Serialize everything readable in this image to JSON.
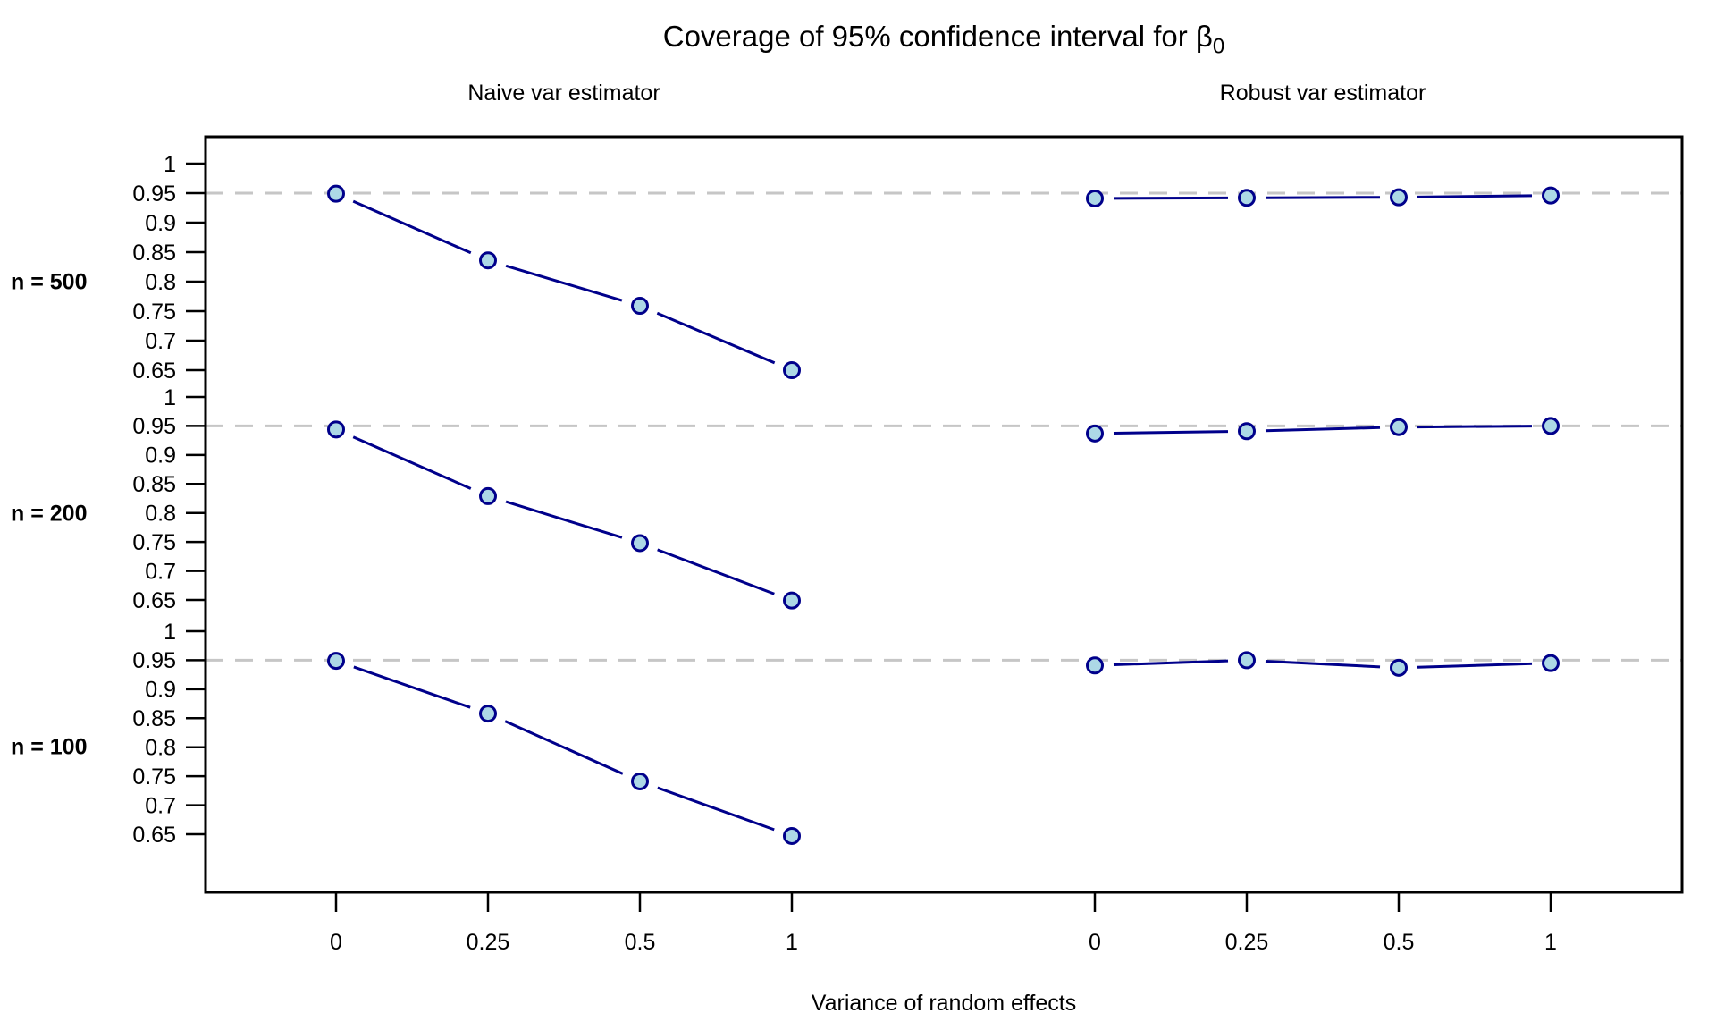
{
  "title": {
    "prefix": "Coverage of 95% confidence interval for ",
    "beta": "β",
    "subscript": "0"
  },
  "panel_headers": {
    "left": "Naive var estimator",
    "right": "Robust var estimator"
  },
  "row_labels": [
    "n = 500",
    "n = 200",
    "n = 100"
  ],
  "x_axis_label": "Variance of random effects",
  "chart_data": {
    "type": "line",
    "title": "Coverage of 95% confidence interval for β0",
    "xlabel": "Variance of random effects",
    "ylabel": "",
    "layout": "lattice: 3 stacked row panels (n = 500, n = 200, n = 100) × 2 columns (Naive, Robust), single outer box, shared axes",
    "columns": [
      "Naive var estimator",
      "Robust var estimator"
    ],
    "rows": [
      "n = 500",
      "n = 200",
      "n = 100"
    ],
    "x_categories": [
      "0",
      "0.25",
      "0.5",
      "1"
    ],
    "x_values": [
      0,
      0.25,
      0.5,
      1
    ],
    "x_equally_spaced": true,
    "y_tick_labels": [
      "1",
      "0.95",
      "0.9",
      "0.85",
      "0.8",
      "0.75",
      "0.7",
      "0.65"
    ],
    "y_tick_values": [
      1,
      0.95,
      0.9,
      0.85,
      0.8,
      0.75,
      0.7,
      0.65
    ],
    "row_ylim": [
      0.627,
      1.045
    ],
    "reference_line": 0.95,
    "grid": false,
    "legend": "none",
    "marker": "open-circle",
    "series": [
      {
        "row": "n = 500",
        "column": "Naive var estimator",
        "values": [
          0.949,
          0.836,
          0.759,
          0.65
        ]
      },
      {
        "row": "n = 500",
        "column": "Robust var estimator",
        "values": [
          0.941,
          0.942,
          0.943,
          0.946
        ]
      },
      {
        "row": "n = 200",
        "column": "Naive var estimator",
        "values": [
          0.944,
          0.829,
          0.748,
          0.649
        ]
      },
      {
        "row": "n = 200",
        "column": "Robust var estimator",
        "values": [
          0.937,
          0.941,
          0.948,
          0.95
        ]
      },
      {
        "row": "n = 100",
        "column": "Naive var estimator",
        "values": [
          0.949,
          0.858,
          0.741,
          0.647
        ]
      },
      {
        "row": "n = 100",
        "column": "Robust var estimator",
        "values": [
          0.941,
          0.95,
          0.937,
          0.945
        ]
      }
    ],
    "colors": {
      "line": "#00008B",
      "point_fill": "#ADD8E6",
      "point_stroke": "#00008B",
      "reference_line": "#C6C6C6",
      "axis": "#000000",
      "text": "#000000",
      "background": "#FFFFFF"
    }
  }
}
